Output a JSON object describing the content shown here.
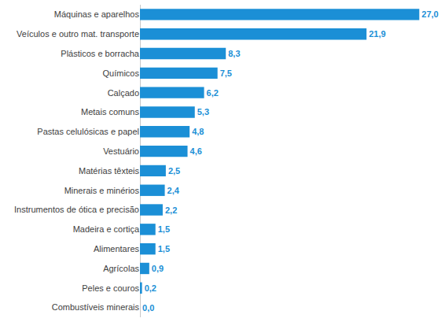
{
  "chart_data": {
    "type": "bar",
    "orientation": "horizontal",
    "categories": [
      "Máquinas e aparelhos",
      "Veículos e outro mat. transporte",
      "Plásticos e borracha",
      "Químicos",
      "Calçado",
      "Metais comuns",
      "Pastas celulósicas e papel",
      "Vestuário",
      "Matérias têxteis",
      "Minerais e minérios",
      "Instrumentos de ótica e precisão",
      "Madeira e cortiça",
      "Alimentares",
      "Agrícolas",
      "Peles e couros",
      "Combustíveis minerais"
    ],
    "values": [
      27.0,
      21.9,
      8.3,
      7.5,
      6.2,
      5.3,
      4.8,
      4.6,
      2.5,
      2.4,
      2.2,
      1.5,
      1.5,
      0.9,
      0.2,
      0.0
    ],
    "value_labels": [
      "27,0",
      "21,9",
      "8,3",
      "7,5",
      "6,2",
      "5,3",
      "4,8",
      "4,6",
      "2,5",
      "2,4",
      "2,2",
      "1,5",
      "1,5",
      "0,9",
      "0,2",
      "0,0"
    ],
    "color": "#1b8fd6",
    "data_labels": true,
    "tick_labels": "y",
    "grid": false
  }
}
